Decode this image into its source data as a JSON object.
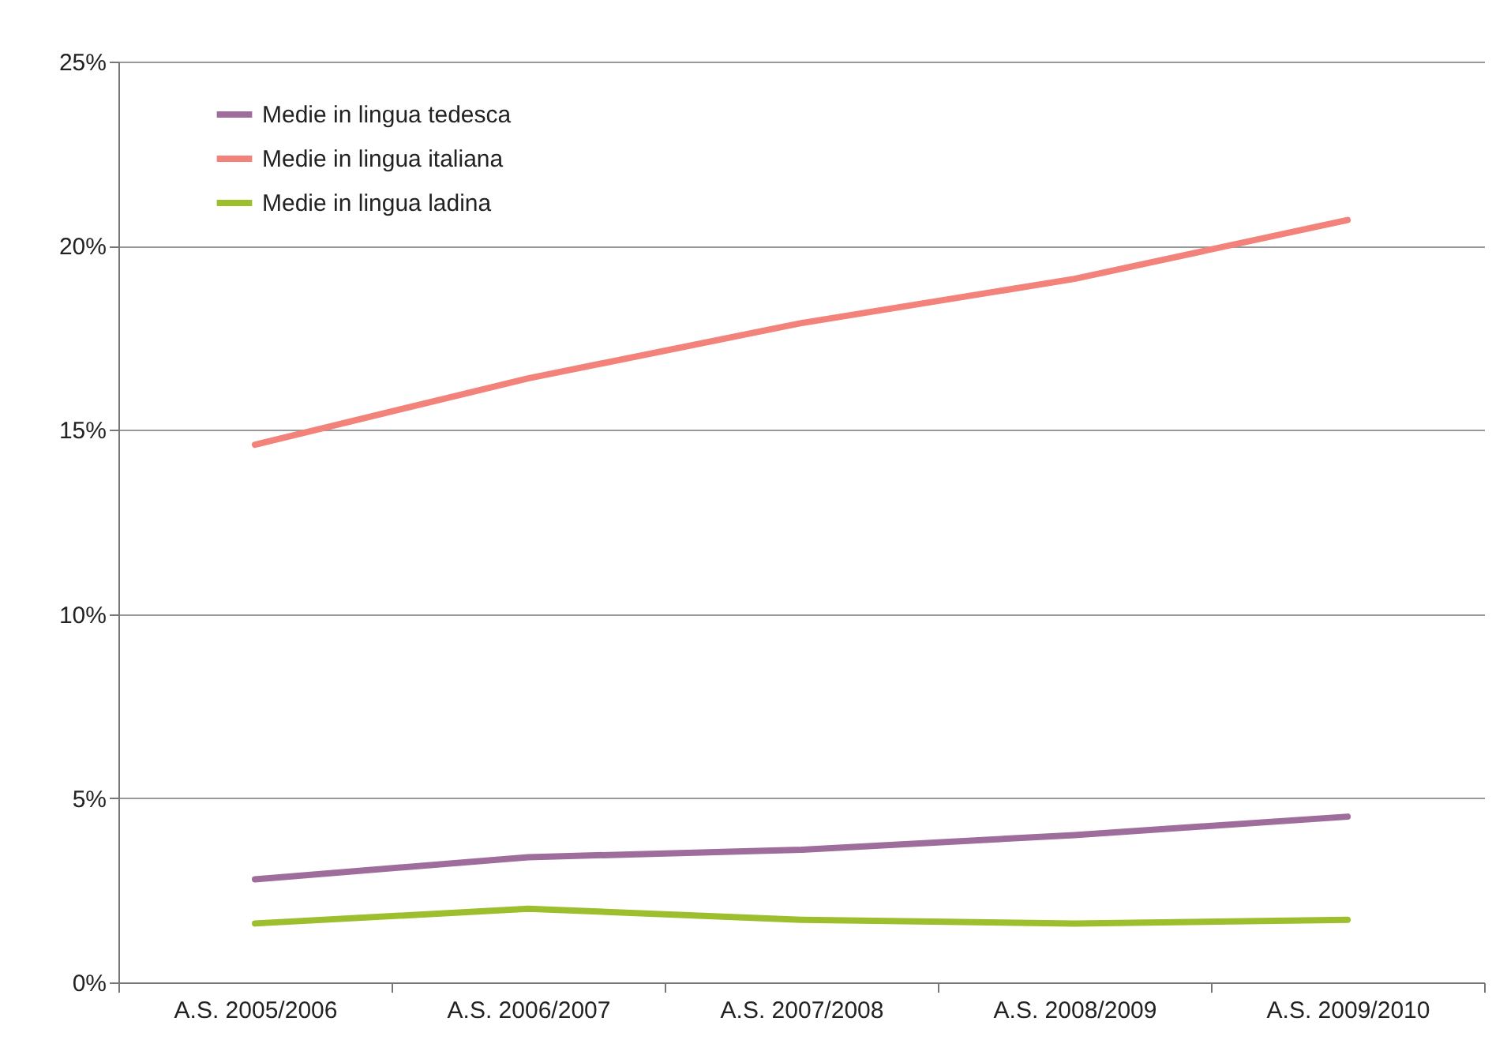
{
  "chart_data": {
    "type": "line",
    "categories": [
      "A.S. 2005/2006",
      "A.S. 2006/2007",
      "A.S. 2007/2008",
      "A.S. 2008/2009",
      "A.S. 2009/2010"
    ],
    "series": [
      {
        "name": "Medie in lingua tedesca",
        "color": "#9e6d9b",
        "values": [
          2.8,
          3.4,
          3.6,
          4.0,
          4.5
        ]
      },
      {
        "name": "Medie in lingua italiana",
        "color": "#f2827a",
        "values": [
          14.6,
          16.4,
          17.9,
          19.1,
          20.7
        ]
      },
      {
        "name": "Medie in lingua ladina",
        "color": "#9dbf2e",
        "values": [
          1.6,
          2.0,
          1.7,
          1.6,
          1.7
        ]
      }
    ],
    "ylim": [
      0,
      25
    ],
    "yticks": [
      {
        "value": 0,
        "label": "0%"
      },
      {
        "value": 5,
        "label": "5%"
      },
      {
        "value": 10,
        "label": "10%"
      },
      {
        "value": 15,
        "label": "15%"
      },
      {
        "value": 20,
        "label": "20%"
      },
      {
        "value": 25,
        "label": "25%"
      }
    ],
    "grid": "y",
    "legend": "top left",
    "marker": "none",
    "line_style": "solid"
  }
}
